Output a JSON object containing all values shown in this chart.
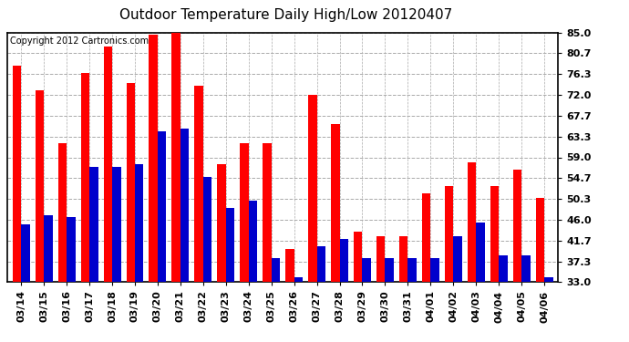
{
  "title": "Outdoor Temperature Daily High/Low 20120407",
  "copyright": "Copyright 2012 Cartronics.com",
  "dates": [
    "03/14",
    "03/15",
    "03/16",
    "03/17",
    "03/18",
    "03/19",
    "03/20",
    "03/21",
    "03/22",
    "03/23",
    "03/24",
    "03/25",
    "03/26",
    "03/27",
    "03/28",
    "03/29",
    "03/30",
    "03/31",
    "04/01",
    "04/02",
    "04/03",
    "04/04",
    "04/05",
    "04/06"
  ],
  "highs": [
    78.0,
    73.0,
    62.0,
    76.5,
    82.0,
    74.5,
    84.5,
    85.0,
    74.0,
    57.5,
    62.0,
    62.0,
    40.0,
    72.0,
    66.0,
    43.5,
    42.5,
    42.5,
    51.5,
    53.0,
    58.0,
    53.0,
    56.5,
    50.5
  ],
  "lows": [
    45.0,
    47.0,
    46.5,
    57.0,
    57.0,
    57.5,
    64.5,
    65.0,
    55.0,
    48.5,
    50.0,
    38.0,
    34.0,
    40.5,
    42.0,
    38.0,
    38.0,
    38.0,
    38.0,
    42.5,
    45.5,
    38.5,
    38.5,
    34.0
  ],
  "high_color": "#ff0000",
  "low_color": "#0000cc",
  "bg_color": "#ffffff",
  "yticks": [
    33.0,
    37.3,
    41.7,
    46.0,
    50.3,
    54.7,
    59.0,
    63.3,
    67.7,
    72.0,
    76.3,
    80.7,
    85.0
  ],
  "ymin": 33.0,
  "ymax": 85.0,
  "grid_color": "#aaaaaa",
  "bar_width": 0.38,
  "title_fontsize": 11,
  "copyright_fontsize": 7,
  "tick_fontsize": 8
}
